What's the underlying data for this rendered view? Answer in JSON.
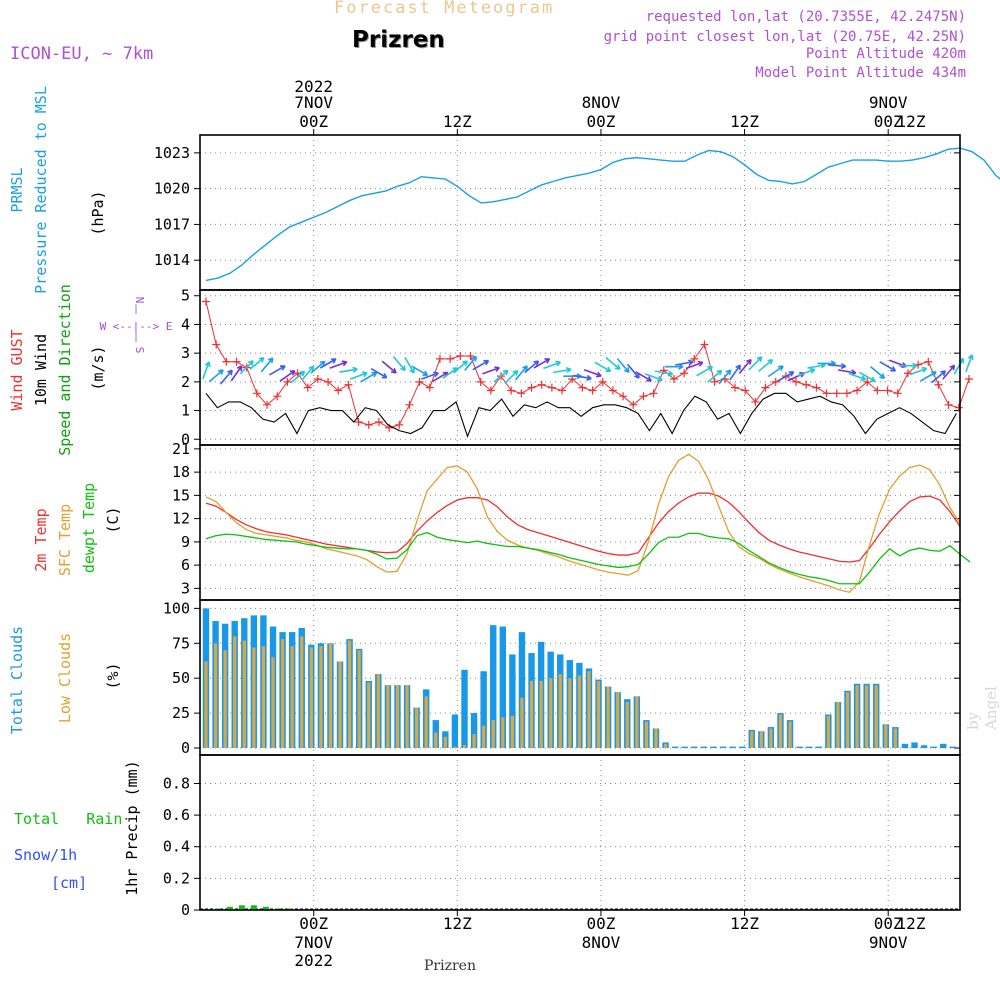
{
  "header": {
    "supertitle": "Forecast Meteogram",
    "location": "Prizren",
    "model": "ICON-EU, ~ 7km",
    "requested": "requested lon,lat (20.7355E, 42.2475N)",
    "grid_point": "grid point closest lon,lat (20.75E, 42.25N)",
    "point_alt": "Point Altitude 420m",
    "model_alt": "Model Point Altitude 434m",
    "credit": "by Angel",
    "footer": "Prizren"
  },
  "colors": {
    "pressure": "#1aa0e8",
    "gust": "#f03030",
    "wind": "#000000",
    "temp": "#f03030",
    "sfc": "#e0a030",
    "dewpt": "#10c010",
    "total_cloud": "#1a98e8",
    "low_cloud": "#d8a848",
    "rain": "#10c010",
    "snow": "#3050f0",
    "compass": "#a050d0"
  },
  "time_axis": {
    "top": [
      "2022",
      "7NOV",
      "00Z",
      "12Z",
      "8NOV",
      "00Z",
      "12Z",
      "9NOV",
      "00Z",
      "12Z"
    ],
    "bottom": [
      "00Z",
      "7NOV",
      "2022",
      "12Z",
      "00Z",
      "8NOV",
      "12Z",
      "00Z",
      "9NOV",
      "12Z"
    ],
    "hours_range": [
      -9.5,
      54
    ],
    "ticks_hours": [
      0,
      12,
      24,
      36,
      48
    ]
  },
  "compass": [
    "N",
    "|",
    "W <--|--> E",
    "|",
    "S"
  ],
  "legend": {
    "pressure": [
      "PRMSL",
      "Pressure Reduced to MSL",
      "(hPa)"
    ],
    "wind": [
      "Wind GUST",
      "10m Wind",
      "Speed and Direction",
      "(m/s)"
    ],
    "temp": [
      "2m Temp",
      "SFC Temp",
      "dewpt Temp",
      "(C)"
    ],
    "cloud": [
      "Total Clouds",
      "Low Clouds",
      "(%)"
    ],
    "precip_left": [
      "Total",
      "Rain",
      "Snow/1h",
      "[cm]"
    ],
    "precip_axis": "1hr Precip (mm)"
  },
  "chart_data": [
    {
      "type": "line",
      "title": "PRMSL Pressure Reduced to MSL",
      "ylabel": "(hPa)",
      "ylim": [
        1011.5,
        1024.5
      ],
      "yticks": [
        1014,
        1017,
        1020,
        1023
      ],
      "x_hours_start": -9,
      "x_step_hours": 1,
      "series": [
        {
          "name": "PRMSL",
          "values": [
            1012.3,
            1012.5,
            1012.9,
            1013.6,
            1014.5,
            1015.3,
            1016.1,
            1016.8,
            1017.2,
            1017.6,
            1018.0,
            1018.5,
            1019.0,
            1019.4,
            1019.6,
            1019.8,
            1020.2,
            1020.5,
            1021.0,
            1020.9,
            1020.8,
            1020.2,
            1019.4,
            1018.8,
            1018.9,
            1019.1,
            1019.3,
            1019.8,
            1020.3,
            1020.6,
            1020.9,
            1021.1,
            1021.3,
            1021.6,
            1022.2,
            1022.5,
            1022.6,
            1022.5,
            1022.4,
            1022.3,
            1022.3,
            1022.8,
            1023.2,
            1023.1,
            1022.7,
            1022.0,
            1021.2,
            1020.7,
            1020.6,
            1020.4,
            1020.6,
            1021.2,
            1021.8,
            1022.1,
            1022.4,
            1022.4,
            1022.4,
            1022.3,
            1022.3,
            1022.4,
            1022.6,
            1022.9,
            1023.3,
            1023.4,
            1023.1,
            1022.4,
            1021.1,
            1020.3,
            1020.0,
            1019.9,
            1020.0,
            1020.4,
            1021.0
          ]
        }
      ]
    },
    {
      "type": "line",
      "title": "Wind GUST / 10m Wind",
      "ylabel": "(m/s)",
      "ylim": [
        -0.2,
        5.2
      ],
      "yticks": [
        0,
        1,
        2,
        3,
        4,
        5
      ],
      "x_hours_start": -9,
      "x_step_hours": 1,
      "series": [
        {
          "name": "Wind GUST",
          "values": [
            4.8,
            3.3,
            2.7,
            2.7,
            2.5,
            1.6,
            1.2,
            1.5,
            2.0,
            2.3,
            1.8,
            2.1,
            2.0,
            1.7,
            1.9,
            0.6,
            0.5,
            0.6,
            0.4,
            0.5,
            1.2,
            2.0,
            1.8,
            2.8,
            2.8,
            2.9,
            2.9,
            2.0,
            1.7,
            2.2,
            1.7,
            1.6,
            1.8,
            1.9,
            1.8,
            1.7,
            2.1,
            1.8,
            1.7,
            2.0,
            1.7,
            1.5,
            1.2,
            1.5,
            1.6,
            2.4,
            2.1,
            2.3,
            2.8,
            3.3,
            2.0,
            2.1,
            1.8,
            1.7,
            1.3,
            1.8,
            2.0,
            2.2,
            2.0,
            1.9,
            1.8,
            1.6,
            1.6,
            1.6,
            1.7,
            2.0,
            1.7,
            1.7,
            1.6,
            2.3,
            2.6,
            2.7,
            1.9,
            1.2,
            1.1,
            2.1
          ]
        },
        {
          "name": "10m Wind",
          "values": [
            1.6,
            1.1,
            1.3,
            1.3,
            1.1,
            0.7,
            0.6,
            0.9,
            0.2,
            1.0,
            1.1,
            1.0,
            1.0,
            0.6,
            1.1,
            1.0,
            0.5,
            0.3,
            0.2,
            0.4,
            1.0,
            1.0,
            1.3,
            0.1,
            1.1,
            1.0,
            1.4,
            0.8,
            1.2,
            1.1,
            1.3,
            1.1,
            1.1,
            0.8,
            1.1,
            1.2,
            1.2,
            1.1,
            0.9,
            0.3,
            0.9,
            0.2,
            1.0,
            1.5,
            1.3,
            0.7,
            0.9,
            0.2,
            0.9,
            1.4,
            1.6,
            1.6,
            1.3,
            1.4,
            1.5,
            1.3,
            1.2,
            0.8,
            0.2,
            0.7,
            0.9,
            1.1,
            0.9,
            0.6,
            0.3,
            0.2,
            0.9
          ]
        },
        {
          "name": "Wind Direction (deg from)",
          "values": [
            200,
            230,
            220,
            215,
            225,
            230,
            220,
            240,
            235,
            230,
            220,
            230,
            240,
            250,
            260,
            250,
            240,
            300,
            310,
            320,
            330,
            300,
            250,
            240,
            235,
            230,
            220,
            240,
            250,
            230,
            225,
            220,
            230,
            240,
            250,
            260,
            270,
            280,
            290,
            300,
            310,
            320,
            320,
            300,
            290,
            280,
            270,
            260,
            250,
            240,
            230,
            220,
            215,
            220,
            225,
            230,
            235,
            240,
            245,
            250,
            260,
            270,
            275,
            280,
            290,
            300,
            310,
            300,
            290,
            270,
            250,
            240,
            230,
            220,
            210,
            200
          ]
        }
      ]
    },
    {
      "type": "line",
      "title": "Temperature",
      "ylabel": "(C)",
      "ylim": [
        1.5,
        21.5
      ],
      "yticks": [
        3,
        6,
        9,
        12,
        15,
        18,
        21
      ],
      "x_hours_start": -9,
      "x_step_hours": 1,
      "series": [
        {
          "name": "2m Temp",
          "values": [
            14.0,
            13.6,
            12.8,
            11.9,
            11.2,
            10.7,
            10.3,
            10.1,
            9.9,
            9.6,
            9.3,
            9.0,
            8.7,
            8.5,
            8.3,
            8.1,
            7.9,
            7.7,
            7.6,
            7.7,
            8.8,
            10.4,
            11.7,
            12.8,
            13.7,
            14.4,
            14.7,
            14.7,
            14.4,
            13.5,
            12.2,
            11.2,
            10.6,
            10.2,
            9.8,
            9.4,
            9.0,
            8.6,
            8.2,
            7.8,
            7.5,
            7.3,
            7.3,
            7.6,
            9.5,
            11.4,
            12.9,
            14.0,
            14.8,
            15.3,
            15.3,
            14.9,
            14.1,
            12.9,
            11.5,
            10.2,
            9.2,
            8.6,
            8.1,
            7.7,
            7.4,
            7.1,
            6.8,
            6.5,
            6.4,
            6.6,
            8.2,
            10.0,
            11.6,
            13.0,
            14.2,
            14.8,
            14.9,
            14.4,
            12.9,
            11.0
          ]
        },
        {
          "name": "SFC Temp",
          "values": [
            14.8,
            14.2,
            12.8,
            11.5,
            10.6,
            10.1,
            9.9,
            9.7,
            9.5,
            9.2,
            9.0,
            8.6,
            8.1,
            7.8,
            7.5,
            7.2,
            6.7,
            5.8,
            5.1,
            5.2,
            7.5,
            11.8,
            15.6,
            17.1,
            18.6,
            18.8,
            18.0,
            15.8,
            12.2,
            10.3,
            9.2,
            8.6,
            8.2,
            7.9,
            7.5,
            7.1,
            6.6,
            6.2,
            5.8,
            5.4,
            5.1,
            4.9,
            4.7,
            5.3,
            9.0,
            13.8,
            17.4,
            19.5,
            20.3,
            19.4,
            17.0,
            13.6,
            10.3,
            8.4,
            7.5,
            6.9,
            6.1,
            5.5,
            5.0,
            4.5,
            4.1,
            3.7,
            3.3,
            2.8,
            2.5,
            3.9,
            8.6,
            12.7,
            15.8,
            17.5,
            18.6,
            18.9,
            18.3,
            16.3,
            13.4,
            11.4
          ]
        },
        {
          "name": "dewpt Temp",
          "values": [
            9.4,
            9.8,
            10.0,
            9.9,
            9.7,
            9.5,
            9.3,
            9.2,
            9.1,
            9.0,
            8.7,
            8.5,
            8.3,
            8.2,
            8.1,
            8.1,
            7.9,
            7.4,
            6.8,
            6.9,
            8.0,
            9.8,
            10.2,
            9.6,
            9.3,
            9.1,
            8.9,
            9.1,
            8.8,
            8.6,
            8.4,
            8.4,
            8.2,
            8.0,
            7.7,
            7.4,
            7.0,
            6.7,
            6.4,
            6.1,
            5.9,
            5.7,
            5.8,
            6.1,
            7.4,
            8.9,
            9.6,
            9.6,
            10.1,
            10.1,
            9.7,
            9.5,
            9.4,
            8.8,
            7.9,
            7.1,
            6.3,
            5.7,
            5.2,
            4.8,
            4.5,
            4.3,
            4.0,
            3.6,
            3.6,
            3.6,
            5.1,
            6.8,
            8.1,
            7.2,
            7.9,
            8.2,
            7.9,
            7.8,
            8.5,
            7.4,
            6.4
          ]
        }
      ]
    },
    {
      "type": "bar",
      "title": "Clouds",
      "ylabel": "(%)",
      "ylim": [
        -5,
        106
      ],
      "yticks": [
        0,
        25,
        50,
        75,
        100
      ],
      "x_hours_start": -9,
      "x_step_hours": 1,
      "series": [
        {
          "name": "Total Clouds",
          "values": [
            100,
            91,
            89,
            91,
            93,
            95,
            95,
            87,
            83,
            83,
            86,
            74,
            75,
            75,
            62,
            78,
            71,
            48,
            53,
            45,
            45,
            45,
            29,
            42,
            20,
            12,
            24,
            56,
            25,
            55,
            88,
            87,
            67,
            83,
            68,
            76,
            69,
            67,
            63,
            61,
            57,
            49,
            44,
            40,
            35,
            37,
            20,
            14,
            4,
            1,
            1,
            1,
            1,
            1,
            1,
            1,
            1,
            13,
            12,
            15,
            25,
            20,
            1,
            1,
            1,
            24,
            33,
            41,
            46,
            46,
            46,
            17,
            15,
            3,
            4,
            2,
            1,
            3,
            1
          ]
        },
        {
          "name": "Low Clouds",
          "values": [
            62,
            75,
            70,
            80,
            77,
            72,
            73,
            65,
            78,
            73,
            80,
            72,
            73,
            75,
            62,
            77,
            70,
            47,
            53,
            45,
            45,
            45,
            29,
            37,
            11,
            8,
            1,
            2,
            10,
            16,
            20,
            22,
            23,
            36,
            48,
            48,
            50,
            53,
            50,
            52,
            55,
            48,
            44,
            40,
            33,
            37,
            19,
            14,
            3,
            0,
            0,
            0,
            0,
            0,
            0,
            0,
            0,
            12,
            12,
            14,
            24,
            19,
            0,
            0,
            0,
            23,
            33,
            40,
            45,
            45,
            45,
            17,
            14,
            0,
            0,
            0,
            0,
            0,
            0
          ]
        }
      ]
    },
    {
      "type": "bar",
      "title": "1hr Precip",
      "ylabel": "1hr Precip (mm)",
      "ylim": [
        0,
        0.98
      ],
      "yticks": [
        0,
        0.2,
        0.4,
        0.6,
        0.8
      ],
      "x_hours_start": -9,
      "x_step_hours": 1,
      "series": [
        {
          "name": "Total Rain",
          "values": [
            0,
            0.01,
            0.02,
            0.03,
            0.03,
            0.02,
            0.01,
            0.01,
            0,
            0,
            0,
            0,
            0,
            0,
            0,
            0,
            0,
            0,
            0,
            0,
            0,
            0,
            0,
            0,
            0,
            0,
            0,
            0,
            0,
            0,
            0,
            0,
            0,
            0,
            0,
            0,
            0,
            0,
            0,
            0,
            0,
            0,
            0,
            0,
            0,
            0,
            0,
            0,
            0,
            0,
            0,
            0,
            0,
            0,
            0,
            0,
            0,
            0,
            0,
            0,
            0,
            0,
            0,
            0
          ]
        },
        {
          "name": "Snow/1h",
          "values": [
            0,
            0,
            0,
            0,
            0,
            0,
            0,
            0,
            0,
            0,
            0,
            0,
            0,
            0,
            0,
            0,
            0,
            0,
            0,
            0,
            0,
            0,
            0,
            0,
            0,
            0,
            0,
            0,
            0,
            0,
            0,
            0,
            0,
            0,
            0,
            0,
            0,
            0,
            0,
            0,
            0,
            0,
            0,
            0,
            0,
            0,
            0,
            0,
            0,
            0,
            0,
            0,
            0,
            0,
            0,
            0,
            0,
            0,
            0,
            0,
            0,
            0,
            0,
            0
          ]
        }
      ]
    }
  ]
}
